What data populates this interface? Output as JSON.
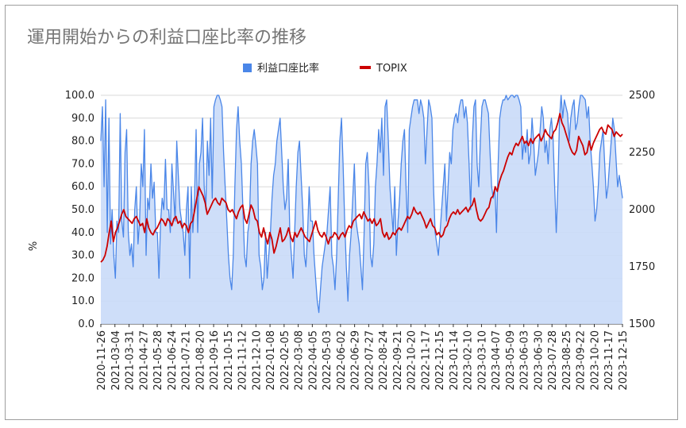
{
  "chart_data": {
    "type": "line",
    "title": "運用開始からの利益口座比率の推移",
    "ylabel": "%",
    "y2label": "",
    "xlabel": "",
    "ylim": [
      0,
      100
    ],
    "y2lim": [
      1500,
      2500
    ],
    "grid": true,
    "legend": "top-center",
    "colors": {
      "profit_ratio": "#4a86e8",
      "profit_ratio_fill": "#c9daf8",
      "topix": "#cc0000"
    },
    "yticks": [
      "0.0",
      "10.0",
      "20.0",
      "30.0",
      "40.0",
      "50.0",
      "60.0",
      "70.0",
      "80.0",
      "90.0",
      "100.0"
    ],
    "y2ticks": [
      "1500",
      "1750",
      "2000",
      "2250",
      "2500"
    ],
    "xticks": [
      "2020-11-26",
      "2021-03-04",
      "2021-03-31",
      "2021-04-27",
      "2021-05-28",
      "2021-06-24",
      "2021-07-21",
      "2021-08-20",
      "2021-09-16",
      "2021-10-15",
      "2021-11-12",
      "2021-12-10",
      "2022-01-08",
      "2022-02-05",
      "2022-03-08",
      "2022-04-05",
      "2022-05-03",
      "2022-06-02",
      "2022-06-29",
      "2022-07-27",
      "2022-08-24",
      "2022-09-21",
      "2022-10-20",
      "2022-11-17",
      "2022-12-15",
      "2023-01-14",
      "2023-02-10",
      "2023-03-10",
      "2023-04-07",
      "2023-05-09",
      "2023-06-03",
      "2023-06-30",
      "2023-07-28",
      "2023-08-25",
      "2023-09-22",
      "2023-10-20",
      "2023-11-17",
      "2023-12-15"
    ],
    "series": [
      {
        "name": "利益口座比率",
        "axis": "left",
        "type": "area",
        "values": [
          80,
          95,
          60,
          98,
          40,
          90,
          35,
          50,
          30,
          20,
          45,
          40,
          92,
          45,
          38,
          75,
          85,
          40,
          30,
          35,
          25,
          50,
          60,
          35,
          45,
          70,
          60,
          85,
          30,
          55,
          50,
          70,
          55,
          62,
          40,
          40,
          20,
          45,
          55,
          50,
          72,
          50,
          50,
          40,
          70,
          58,
          45,
          80,
          65,
          50,
          45,
          40,
          30,
          50,
          60,
          20,
          60,
          40,
          55,
          85,
          40,
          70,
          75,
          90,
          60,
          50,
          80,
          65,
          90,
          55,
          95,
          98,
          100,
          100,
          98,
          95,
          75,
          60,
          45,
          30,
          20,
          15,
          30,
          60,
          85,
          95,
          80,
          70,
          50,
          30,
          25,
          40,
          45,
          70,
          80,
          85,
          78,
          70,
          30,
          25,
          15,
          20,
          40,
          20,
          30,
          40,
          55,
          65,
          70,
          80,
          85,
          90,
          75,
          60,
          50,
          55,
          72,
          40,
          30,
          20,
          40,
          60,
          75,
          80,
          65,
          50,
          30,
          25,
          40,
          60,
          45,
          45,
          30,
          20,
          10,
          5,
          15,
          25,
          30,
          35,
          40,
          50,
          60,
          30,
          25,
          15,
          30,
          55,
          80,
          90,
          70,
          45,
          25,
          10,
          30,
          40,
          55,
          70,
          45,
          40,
          35,
          25,
          15,
          40,
          70,
          75,
          60,
          30,
          25,
          35,
          60,
          70,
          85,
          75,
          90,
          65,
          95,
          98,
          80,
          60,
          50,
          40,
          60,
          30,
          45,
          55,
          70,
          80,
          85,
          60,
          40,
          85,
          90,
          95,
          98,
          98,
          98,
          92,
          98,
          95,
          90,
          70,
          85,
          98,
          95,
          90,
          60,
          40,
          35,
          30,
          40,
          50,
          60,
          70,
          45,
          60,
          75,
          70,
          85,
          90,
          92,
          88,
          95,
          98,
          98,
          90,
          95,
          88,
          70,
          50,
          80,
          95,
          98,
          70,
          60,
          80,
          95,
          98,
          98,
          95,
          92,
          75,
          60,
          55,
          60,
          40,
          70,
          90,
          95,
          98,
          98,
          100,
          98,
          99,
          100,
          100,
          99,
          100,
          100,
          98,
          95,
          72,
          80,
          75,
          85,
          70,
          75,
          90,
          80,
          65,
          70,
          75,
          85,
          95,
          90,
          75,
          80,
          70,
          85,
          90,
          82,
          60,
          40,
          60,
          90,
          100,
          90,
          98,
          95,
          92,
          80,
          90,
          95,
          98,
          85,
          88,
          95,
          100,
          100,
          99,
          98,
          90,
          95,
          80,
          70,
          60,
          45,
          50,
          60,
          75,
          80,
          85,
          70,
          55,
          60,
          70,
          80,
          90,
          85,
          72,
          60,
          65,
          60,
          55
        ]
      },
      {
        "name": "TOPIX",
        "axis": "right",
        "type": "line",
        "values": [
          1770,
          1780,
          1800,
          1840,
          1900,
          1950,
          1860,
          1900,
          1920,
          1950,
          1980,
          2000,
          1970,
          1960,
          1950,
          1940,
          1960,
          1970,
          1950,
          1930,
          1940,
          1900,
          1960,
          1920,
          1900,
          1890,
          1910,
          1920,
          1940,
          1960,
          1950,
          1930,
          1960,
          1950,
          1930,
          1960,
          1970,
          1940,
          1950,
          1920,
          1940,
          1930,
          1900,
          1940,
          1950,
          2000,
          2050,
          2100,
          2080,
          2060,
          2030,
          1980,
          2000,
          2020,
          2040,
          2050,
          2030,
          2020,
          2050,
          2040,
          2030,
          2000,
          1990,
          2000,
          1980,
          1960,
          1990,
          2010,
          2020,
          1960,
          1940,
          1980,
          2020,
          2000,
          1960,
          1950,
          1900,
          1880,
          1920,
          1880,
          1850,
          1900,
          1870,
          1810,
          1840,
          1880,
          1920,
          1860,
          1870,
          1890,
          1920,
          1880,
          1860,
          1900,
          1880,
          1900,
          1920,
          1900,
          1880,
          1870,
          1860,
          1890,
          1920,
          1950,
          1910,
          1890,
          1880,
          1900,
          1880,
          1850,
          1880,
          1880,
          1900,
          1890,
          1870,
          1890,
          1900,
          1880,
          1910,
          1930,
          1920,
          1950,
          1960,
          1970,
          1980,
          1960,
          1990,
          1970,
          1950,
          1960,
          1940,
          1960,
          1930,
          1940,
          1960,
          1900,
          1880,
          1900,
          1870,
          1880,
          1900,
          1890,
          1910,
          1920,
          1910,
          1930,
          1950,
          1970,
          1960,
          1980,
          2010,
          1990,
          1980,
          1990,
          1970,
          1950,
          1920,
          1940,
          1960,
          1930,
          1920,
          1890,
          1900,
          1880,
          1890,
          1920,
          1930,
          1960,
          1980,
          1990,
          1980,
          2000,
          1980,
          1990,
          2000,
          2010,
          1990,
          2010,
          2020,
          2050,
          2000,
          1960,
          1950,
          1960,
          1980,
          2000,
          2010,
          2050,
          2060,
          2100,
          2080,
          2120,
          2150,
          2170,
          2200,
          2230,
          2250,
          2240,
          2270,
          2290,
          2280,
          2300,
          2320,
          2290,
          2300,
          2280,
          2310,
          2290,
          2310,
          2320,
          2330,
          2300,
          2320,
          2350,
          2330,
          2320,
          2310,
          2340,
          2350,
          2380,
          2420,
          2380,
          2360,
          2330,
          2300,
          2270,
          2250,
          2240,
          2260,
          2320,
          2300,
          2280,
          2240,
          2250,
          2300,
          2260,
          2290,
          2310,
          2330,
          2350,
          2360,
          2340,
          2330,
          2370,
          2360,
          2350,
          2320,
          2340,
          2330,
          2320,
          2330
        ]
      }
    ]
  }
}
